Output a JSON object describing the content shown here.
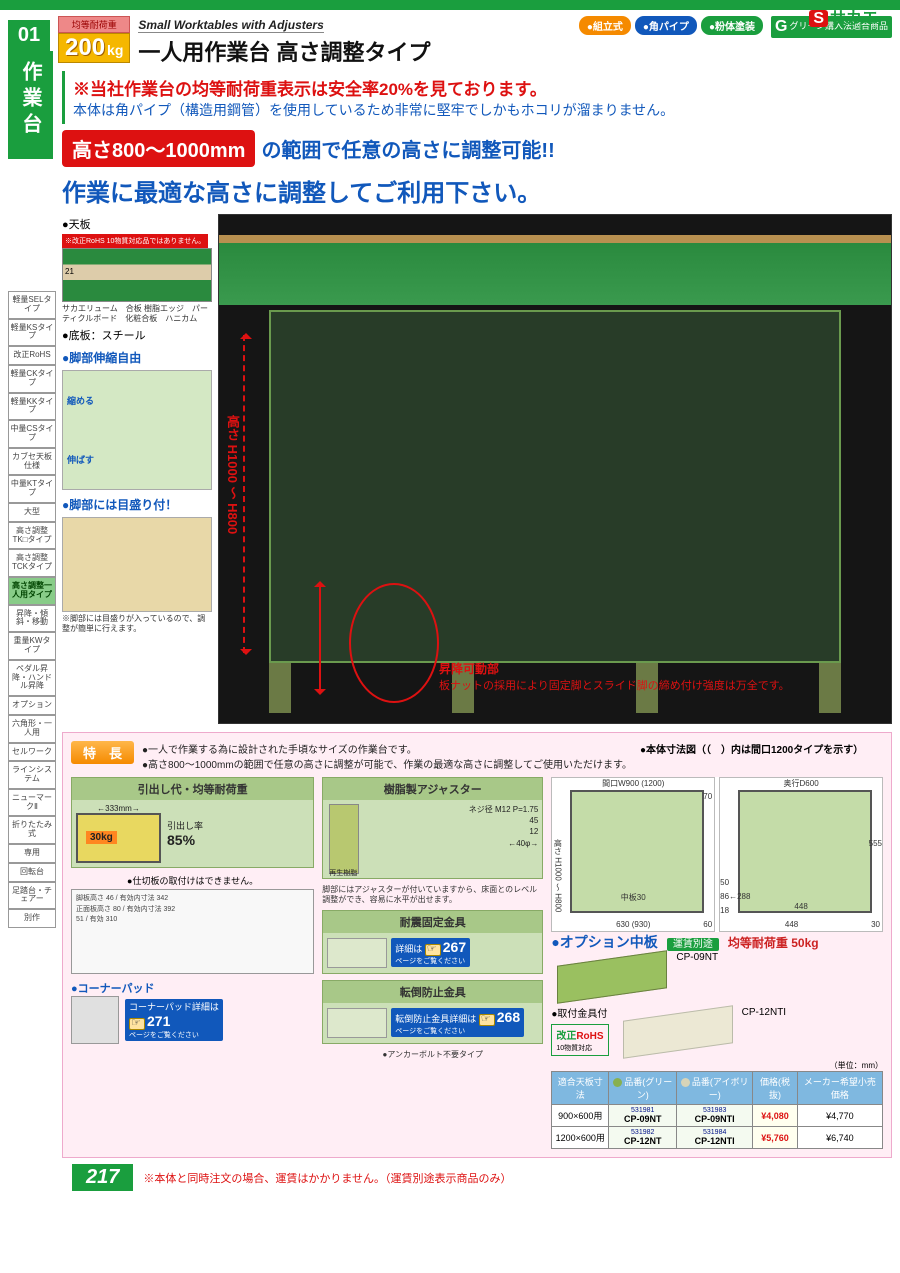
{
  "brand": {
    "s": "S",
    "name": "サカエ"
  },
  "sidetab": {
    "num": "01",
    "label": "作業台"
  },
  "load_badge": {
    "label": "均等耐荷重",
    "value": "200",
    "unit": "kg"
  },
  "header": {
    "subtitle_en": "Small Worktables with Adjusters",
    "title_jp": "一人用作業台 高さ調整タイプ",
    "tags": [
      {
        "text": "組立式",
        "color": "#f58a00"
      },
      {
        "text": "角パイプ",
        "color": "#1158bb"
      },
      {
        "text": "粉体塗装",
        "color": "#1a9e3e"
      }
    ],
    "g_text": "グリーン購入法適合商品"
  },
  "alerts": {
    "red": "※当社作業台の均等耐荷重表示は安全率20%を見ております。",
    "blue": "本体は角パイプ（構造用鋼管）を使用しているため非常に堅牢でしかもホコリが溜まりません。"
  },
  "highlight": {
    "badge": "高さ800〜1000mm",
    "rest": "の範囲で任意の高さに調整可能!!",
    "line2": "作業に最適な高さに調整してご利用下さい。"
  },
  "sidenav": [
    "軽量SELタイプ",
    "軽量KSタイプ",
    "改正RoHS",
    "軽量CKタイプ",
    "軽量KKタイプ",
    "中量CSタイプ",
    "カブセ天板仕様",
    "中量KTタイプ",
    "大型",
    "高さ調整TK□タイプ",
    "高さ調整TCKタイプ",
    "高さ調整一人用タイプ",
    "昇降・傾斜・移動",
    "重量KWタイプ",
    "ペダル昇降・ハンドル昇降",
    "オプション",
    "六角形・一人用",
    "セルワーク",
    "ラインシステム",
    "ニューマークⅡ",
    "折りたたみ式",
    "専用",
    "回転台",
    "足踏台・チェアー",
    "別作"
  ],
  "sidenav_active_index": 11,
  "leftcol": {
    "tenban": "●天板",
    "rohs_note": "※改正RoHS 10物質対応品ではありません。",
    "mat_labels": "サカエリューム　合板\n樹脂エッジ　パーティクルボード　化粧合板　ハニカム",
    "bottom": "●底板：スチール",
    "h1": "●脚部伸縮自由",
    "leg_shrink": "縮める",
    "leg_extend": "伸ばす",
    "h2": "●脚部には目盛り付！",
    "scale_note": "※脚部には目盛りが入っているので、調整が簡単に行えます。"
  },
  "hero": {
    "h_label": "高さ H1000 〜 H800",
    "cap_t1": "昇降可動部",
    "cap_t2": "板ナットの採用により固定脚とスライド脚の締め付け強度は万全です。"
  },
  "features": {
    "badge": "特　長",
    "bullets": [
      "●一人で作業する為に設計された手頃なサイズの作業台です。",
      "●高さ800〜1000mmの範囲で任意の高さに調整が可能で、作業の最適な高さに調整してご使用いただけます。"
    ],
    "dim_title": "●本体寸法図（（　）内は間口1200タイプを示す）",
    "panels": {
      "drawer": {
        "title": "引出し代・均等耐荷重",
        "arrow": "333mm",
        "kg": "30kg",
        "rate_lbl": "引出し率",
        "rate": "85%",
        "note": "●仕切板の取付けはできません。",
        "dims": [
          "脚板高さ 46",
          "有効内寸法 342",
          "正面板高さ 80",
          "有効内寸法 392",
          "51",
          "有効 310"
        ]
      },
      "adjuster": {
        "title": "樹脂製アジャスター",
        "dims": [
          "ネジ径 M12 P=1.75",
          "45",
          "12",
          "40φ"
        ],
        "resin": "再生樹脂",
        "note": "脚部にはアジャスターが付いていますから、床面とのレベル調整ができ、容易に水平が出せます。"
      },
      "corner": {
        "title": "●コーナーパッド",
        "ref": "271",
        "ref_lbl": "コーナーパッド詳細は",
        "sub": "ページをご覧ください"
      },
      "quake_fix": {
        "title": "耐震固定金具",
        "ref": "267",
        "ref_lbl": "詳細は",
        "sub": "ページをご覧ください"
      },
      "fall_prev": {
        "title": "転倒防止金具",
        "ref": "268",
        "ref_lbl": "転倒防止金具詳細は",
        "sub": "ページをご覧ください",
        "note": "●アンカーボルト不要タイプ"
      }
    },
    "dim_values": {
      "front": {
        "w": "間口W900",
        "w_alt": "(1200)",
        "h": "高さ H1000 〜 H800",
        "mid": "中板30",
        "leg_w": "630",
        "leg_w_alt": "(930)",
        "pad": "60",
        "top": "70"
      },
      "side": {
        "d": "奥行D600",
        "inner": "555",
        "inner_w": "448",
        "base_h": "50",
        "pad": "30",
        "alt": "86←288"
      }
    },
    "option": {
      "title": "●オプション中板",
      "ship": "運賃別途",
      "load": "均等耐荷重 50kg",
      "attach": "●取付金具付",
      "rohs": {
        "r": "改正",
        "o": "RoHS",
        "sub": "10物質対応"
      },
      "unit": "（単位：mm）",
      "shelf_labels": {
        "green": "CP-09NT",
        "ivory": "CP-12NTI"
      },
      "table": {
        "headers": [
          "適合天板寸法",
          "品番(グリーン)",
          "品番(アイボリー)",
          "価格(税抜)",
          "メーカー希望小売価格"
        ],
        "color_green": "#88b050",
        "color_ivory": "#d8d4b8",
        "rows": [
          {
            "size": "900×600用",
            "gnum": "531981",
            "g": "CP-09NT",
            "inum": "531983",
            "i": "CP-09NTI",
            "price": "¥4,080",
            "msrp": "¥4,770"
          },
          {
            "size": "1200×600用",
            "gnum": "531982",
            "g": "CP-12NT",
            "inum": "531984",
            "i": "CP-12NTI",
            "price": "¥5,760",
            "msrp": "¥6,740"
          }
        ]
      }
    }
  },
  "footer": {
    "page": "217",
    "note": "※本体と同時注文の場合、運賃はかかりません。（運賃別途表示商品のみ）"
  }
}
